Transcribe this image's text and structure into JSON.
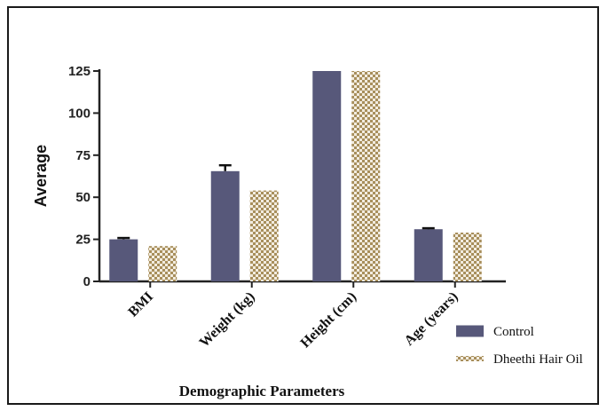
{
  "chart_data": {
    "type": "bar",
    "categories": [
      "BMI",
      "Weight (kg)",
      "Height  (cm)",
      "Age (years)"
    ],
    "series": [
      {
        "name": "Control",
        "values": [
          25,
          65.5,
          125,
          31
        ],
        "errors": [
          0.8,
          3.5,
          0,
          0.6
        ],
        "color": "#57587a"
      },
      {
        "name": "Dheethi Hair Oil",
        "values": [
          21,
          54,
          125,
          29
        ],
        "errors": [
          0,
          0,
          0,
          0
        ],
        "color": "#b09a6a"
      }
    ],
    "xlabel": "Demographic Parameters",
    "ylabel": "Average",
    "ylim": [
      0,
      125
    ],
    "yticks": [
      0,
      25,
      50,
      75,
      100,
      125
    ],
    "legend_position": "bottom-right",
    "grid": false
  }
}
